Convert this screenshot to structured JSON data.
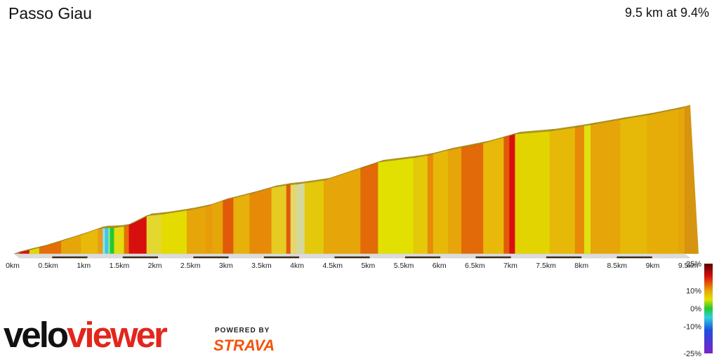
{
  "header": {
    "title": "Passo Giau",
    "summary": "9.5 km at 9.4%"
  },
  "branding": {
    "logo_part1": "velo",
    "logo_part2": "viewer",
    "powered_by": "POWERED BY",
    "partner": "STRAVA"
  },
  "colors": {
    "velo_text": "#111111",
    "viewer_text": "#e2261c",
    "strava_orange": "#f2540c",
    "side_face": "#b59a1e"
  },
  "chart_data": {
    "type": "area",
    "title": "Passo Giau",
    "subtitle": "9.5 km at 9.4%",
    "x_unit": "km",
    "x_ticks": [
      "0km",
      "0.5km",
      "1km",
      "1.5km",
      "2km",
      "2.5km",
      "3km",
      "3.5km",
      "4km",
      "4.5km",
      "5km",
      "5.5km",
      "6km",
      "6.5km",
      "7km",
      "7.5km",
      "8km",
      "8.5km",
      "9km",
      "9.5km"
    ],
    "x_range": [
      0,
      9.5
    ],
    "relative_height_range": [
      0,
      1
    ],
    "profile": [
      [
        0.0,
        0.0
      ],
      [
        0.08,
        0.009
      ],
      [
        0.22,
        0.024
      ],
      [
        0.36,
        0.038
      ],
      [
        0.67,
        0.079
      ],
      [
        0.95,
        0.117
      ],
      [
        1.19,
        0.153
      ],
      [
        1.26,
        0.158
      ],
      [
        1.42,
        0.16
      ],
      [
        1.56,
        0.168
      ],
      [
        1.63,
        0.179
      ],
      [
        1.88,
        0.233
      ],
      [
        2.09,
        0.242
      ],
      [
        2.45,
        0.266
      ],
      [
        2.72,
        0.29
      ],
      [
        2.96,
        0.326
      ],
      [
        3.34,
        0.367
      ],
      [
        3.65,
        0.405
      ],
      [
        3.86,
        0.42
      ],
      [
        4.0,
        0.426
      ],
      [
        4.39,
        0.45
      ],
      [
        4.91,
        0.525
      ],
      [
        5.16,
        0.561
      ],
      [
        5.66,
        0.588
      ],
      [
        5.86,
        0.603
      ],
      [
        6.15,
        0.635
      ],
      [
        6.65,
        0.678
      ],
      [
        7.02,
        0.723
      ],
      [
        7.1,
        0.733
      ],
      [
        7.59,
        0.751
      ],
      [
        7.95,
        0.774
      ],
      [
        8.17,
        0.79
      ],
      [
        8.59,
        0.822
      ],
      [
        8.97,
        0.849
      ],
      [
        9.42,
        0.888
      ],
      [
        9.5,
        0.898
      ]
    ],
    "segments": [
      {
        "from": 0.0,
        "to": 0.08,
        "grade_color": "#e05a0a"
      },
      {
        "from": 0.08,
        "to": 0.22,
        "grade_color": "#d80f0f"
      },
      {
        "from": 0.22,
        "to": 0.36,
        "grade_color": "#dcd800"
      },
      {
        "from": 0.36,
        "to": 0.67,
        "grade_color": "#e56e08"
      },
      {
        "from": 0.67,
        "to": 0.95,
        "grade_color": "#e6a508"
      },
      {
        "from": 0.95,
        "to": 1.19,
        "grade_color": "#e8b80a"
      },
      {
        "from": 1.19,
        "to": 1.26,
        "grade_color": "#e89a1a"
      },
      {
        "from": 1.26,
        "to": 1.29,
        "grade_color": "#8ee6e6"
      },
      {
        "from": 1.29,
        "to": 1.34,
        "grade_color": "#3fc6e0"
      },
      {
        "from": 1.34,
        "to": 1.36,
        "grade_color": "#a8e6a0"
      },
      {
        "from": 1.36,
        "to": 1.42,
        "grade_color": "#22c832"
      },
      {
        "from": 1.42,
        "to": 1.56,
        "grade_color": "#e3dc10"
      },
      {
        "from": 1.56,
        "to": 1.63,
        "grade_color": "#e56e08"
      },
      {
        "from": 1.63,
        "to": 1.88,
        "grade_color": "#d80f0f"
      },
      {
        "from": 1.88,
        "to": 2.09,
        "grade_color": "#e2d830"
      },
      {
        "from": 2.09,
        "to": 2.45,
        "grade_color": "#e4dc00"
      },
      {
        "from": 2.45,
        "to": 2.72,
        "grade_color": "#e6a508"
      },
      {
        "from": 2.72,
        "to": 2.81,
        "grade_color": "#e89c0a"
      },
      {
        "from": 2.81,
        "to": 2.96,
        "grade_color": "#e6a508"
      },
      {
        "from": 2.96,
        "to": 3.11,
        "grade_color": "#e05a0a"
      },
      {
        "from": 3.11,
        "to": 3.34,
        "grade_color": "#e8b00a"
      },
      {
        "from": 3.34,
        "to": 3.65,
        "grade_color": "#e68a08"
      },
      {
        "from": 3.65,
        "to": 3.86,
        "grade_color": "#e6cc20"
      },
      {
        "from": 3.86,
        "to": 3.92,
        "grade_color": "#e05a0a"
      },
      {
        "from": 3.92,
        "to": 4.0,
        "grade_color": "#e8d66a"
      },
      {
        "from": 4.0,
        "to": 4.12,
        "grade_color": "#d4d89a"
      },
      {
        "from": 4.12,
        "to": 4.39,
        "grade_color": "#e4c80a"
      },
      {
        "from": 4.39,
        "to": 4.91,
        "grade_color": "#e6a508"
      },
      {
        "from": 4.91,
        "to": 5.16,
        "grade_color": "#e26a08"
      },
      {
        "from": 5.16,
        "to": 5.66,
        "grade_color": "#e2e000"
      },
      {
        "from": 5.66,
        "to": 5.86,
        "grade_color": "#e4c80a"
      },
      {
        "from": 5.86,
        "to": 5.94,
        "grade_color": "#e68a08"
      },
      {
        "from": 5.94,
        "to": 6.15,
        "grade_color": "#e6b808"
      },
      {
        "from": 6.15,
        "to": 6.34,
        "grade_color": "#e6a508"
      },
      {
        "from": 6.34,
        "to": 6.65,
        "grade_color": "#e26a08"
      },
      {
        "from": 6.65,
        "to": 6.94,
        "grade_color": "#e8b80a"
      },
      {
        "from": 6.94,
        "to": 7.02,
        "grade_color": "#e05a0a"
      },
      {
        "from": 7.02,
        "to": 7.1,
        "grade_color": "#d80f0f"
      },
      {
        "from": 7.1,
        "to": 7.59,
        "grade_color": "#e2d400"
      },
      {
        "from": 7.59,
        "to": 7.95,
        "grade_color": "#e6b808"
      },
      {
        "from": 7.95,
        "to": 8.08,
        "grade_color": "#e68a08"
      },
      {
        "from": 8.08,
        "to": 8.17,
        "grade_color": "#e2e010"
      },
      {
        "from": 8.17,
        "to": 8.59,
        "grade_color": "#e6a508"
      },
      {
        "from": 8.59,
        "to": 8.97,
        "grade_color": "#e6b808"
      },
      {
        "from": 8.97,
        "to": 9.42,
        "grade_color": "#e6ac08"
      },
      {
        "from": 9.42,
        "to": 9.5,
        "grade_color": "#e6a508"
      }
    ],
    "legend": {
      "labels": [
        "25%",
        "10%",
        "0%",
        "-10%",
        "-25%"
      ],
      "values": [
        25,
        10,
        0,
        -10,
        -25
      ],
      "gradient": [
        {
          "value": 25,
          "color": "#5a0000"
        },
        {
          "value": 18,
          "color": "#d80f0f"
        },
        {
          "value": 10,
          "color": "#e6a508"
        },
        {
          "value": 5,
          "color": "#e2e000"
        },
        {
          "value": 0,
          "color": "#22c832"
        },
        {
          "value": -5,
          "color": "#2fd0e0"
        },
        {
          "value": -12,
          "color": "#2050e0"
        },
        {
          "value": -25,
          "color": "#7b22c8"
        }
      ]
    }
  }
}
